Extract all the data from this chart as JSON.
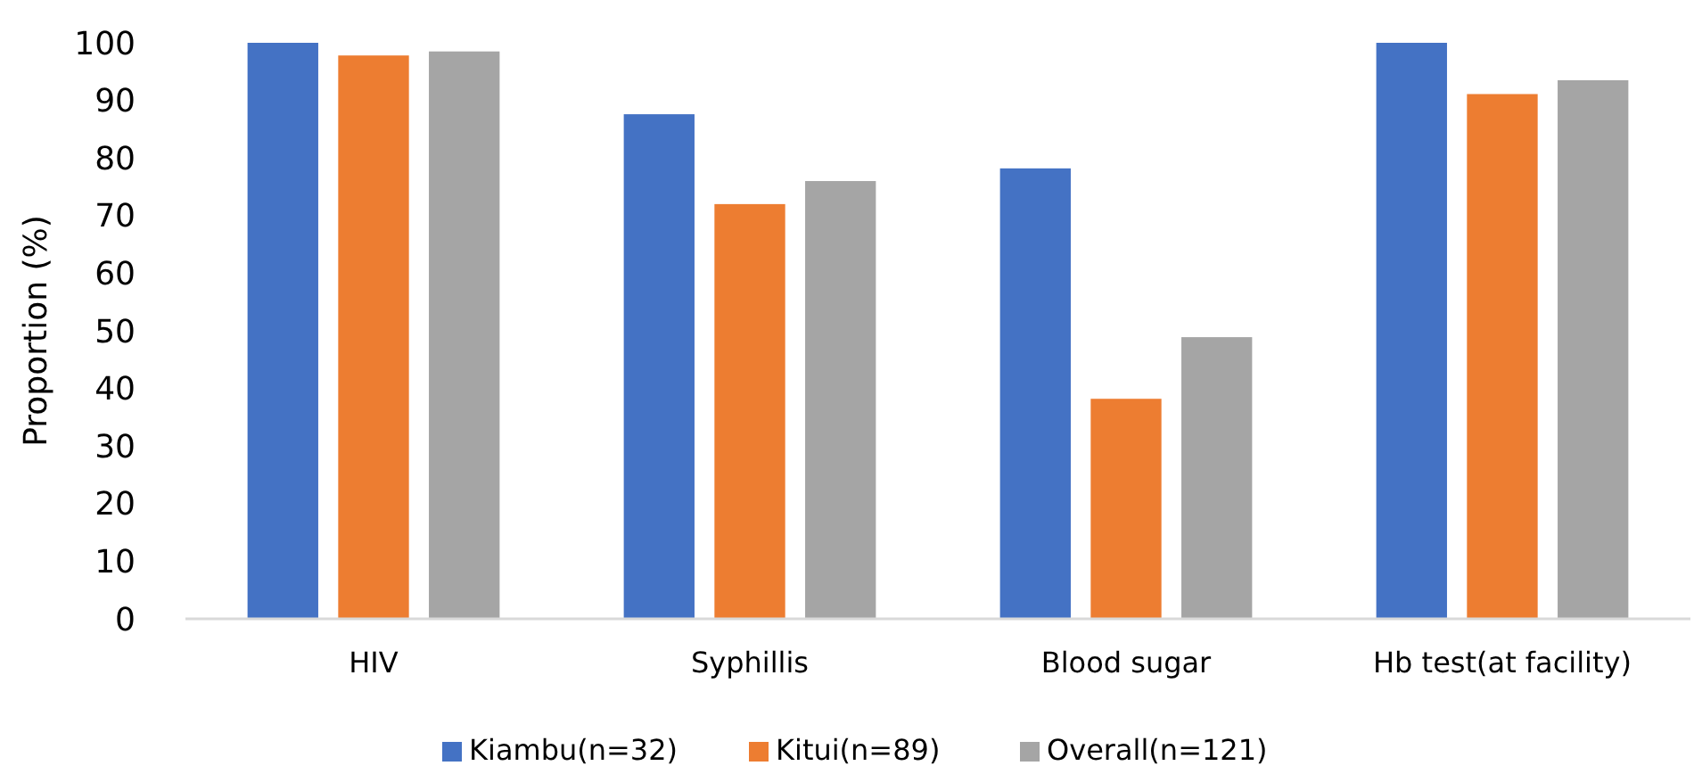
{
  "chart_data": {
    "type": "bar",
    "ylabel": "Proportion (%)",
    "categories": [
      "HIV",
      "Syphillis",
      "Blood sugar",
      "Hb test(at facility)"
    ],
    "series": [
      {
        "name": "Kiambu(n=32)",
        "color": "#4472c4",
        "values": [
          100,
          87.6,
          78.2,
          100
        ]
      },
      {
        "name": "Kitui(n=89)",
        "color": "#ed7d31",
        "values": [
          97.8,
          72.0,
          38.2,
          91.1
        ]
      },
      {
        "name": "Overall(n=121)",
        "color": "#a5a5a5",
        "values": [
          98.5,
          76.0,
          48.9,
          93.5
        ]
      }
    ],
    "ylim": [
      0,
      100
    ],
    "yticks": [
      0,
      10,
      20,
      30,
      40,
      50,
      60,
      70,
      80,
      90,
      100
    ],
    "grid": false,
    "legend": "bottom"
  }
}
